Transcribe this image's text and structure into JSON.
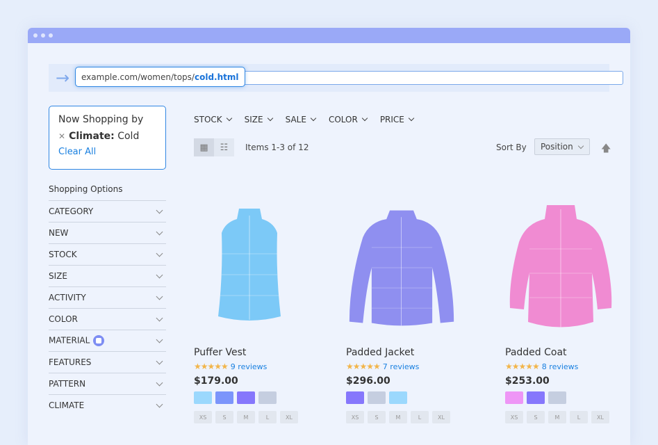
{
  "address_bar": {
    "url_prefix": "example.com/women/tops/",
    "url_highlight": "cold.html"
  },
  "now_shopping": {
    "title": "Now Shopping by",
    "filter_label": "Climate:",
    "filter_value": "Cold",
    "clear_all": "Clear All"
  },
  "shopping_options": {
    "title": "Shopping Options",
    "items": [
      "CATEGORY",
      "NEW",
      "STOCK",
      "SIZE",
      "ACTIVITY",
      "COLOR",
      "MATERIAL",
      "FEATURES",
      "PATTERN",
      "CLIMATE"
    ]
  },
  "filters": [
    "STOCK",
    "SIZE",
    "SALE",
    "COLOR",
    "PRICE"
  ],
  "toolbar": {
    "count": "Items 1-3 of 12",
    "sort_label": "Sort By",
    "sort_value": "Position"
  },
  "products": [
    {
      "name": "Puffer Vest",
      "stars": "★★★★★",
      "reviews": "9 reviews",
      "price": "$179.00",
      "colors": [
        "#9bd8fd",
        "#7c95fb",
        "#8677fc",
        "#c5cee0"
      ],
      "image_color": "#7cc9f7"
    },
    {
      "name": "Padded Jacket",
      "stars": "★★★★★",
      "reviews": "7 reviews",
      "price": "$296.00",
      "colors": [
        "#8677fc",
        "#c5cee0",
        "#9bd8fd"
      ],
      "image_color": "#8f8ff0"
    },
    {
      "name": "Padded Coat",
      "stars": "★★★★★",
      "reviews": "8 reviews",
      "price": "$253.00",
      "colors": [
        "#ee96f6",
        "#8677fc",
        "#c5cee0"
      ],
      "image_color": "#f08bd2"
    }
  ],
  "sizes": [
    "XS",
    "S",
    "M",
    "L",
    "XL"
  ]
}
